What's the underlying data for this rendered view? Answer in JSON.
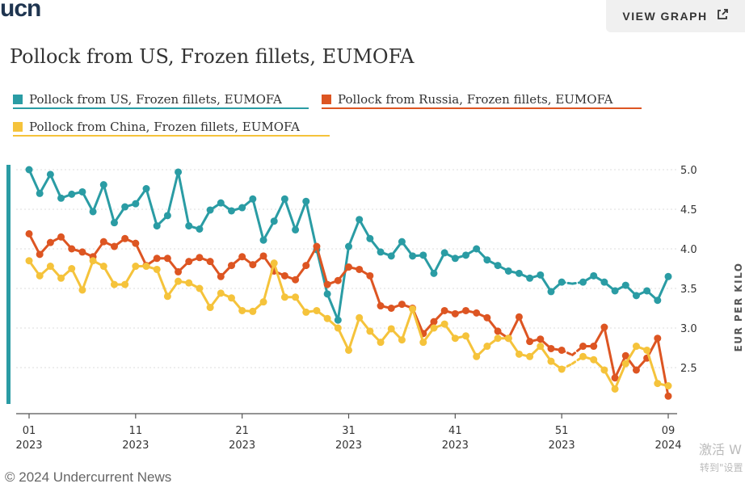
{
  "header": {
    "logo": "ucn",
    "view_graph_label": "VIEW GRAPH"
  },
  "footer": {
    "copyright": "© 2024 Undercurrent News"
  },
  "watermark": {
    "line1": "激活 W",
    "line2": "转到\"设置"
  },
  "colors": {
    "us": "#2a9ca4",
    "russia": "#dd5522",
    "china": "#f5c33b",
    "axis": "#555555",
    "grid": "#dddddd"
  },
  "icons": {
    "view_graph": "external-link-icon"
  },
  "chart_data": {
    "type": "line",
    "title": "Pollock from US, Frozen fillets, EUMOFA",
    "ylabel": "EUR PER KILO",
    "xlabel": "",
    "ylim": [
      2.0,
      5.15
    ],
    "y_ticks": [
      "5.0",
      "4.5",
      "4.0",
      "3.5",
      "3.0",
      "2.5"
    ],
    "x_ticks": [
      {
        "week": "01",
        "year": "2023"
      },
      {
        "week": "11",
        "year": "2023"
      },
      {
        "week": "21",
        "year": "2023"
      },
      {
        "week": "31",
        "year": "2023"
      },
      {
        "week": "41",
        "year": "2023"
      },
      {
        "week": "51",
        "year": "2023"
      },
      {
        "week": "09",
        "year": "2024"
      }
    ],
    "x_tick_positions": [
      0,
      10,
      20,
      30,
      40,
      50,
      60
    ],
    "gap_segments": [
      [
        50,
        52
      ]
    ],
    "legend_position": "top",
    "series": [
      {
        "name": "Pollock from US, Frozen fillets, EUMOFA",
        "color": "#2a9ca4",
        "values": [
          5.0,
          4.7,
          4.94,
          4.64,
          4.69,
          4.72,
          4.47,
          4.81,
          4.33,
          4.53,
          4.57,
          4.76,
          4.29,
          4.42,
          4.97,
          4.29,
          4.25,
          4.49,
          4.58,
          4.48,
          4.52,
          4.63,
          4.11,
          4.35,
          4.63,
          4.24,
          4.6,
          3.99,
          3.43,
          3.1,
          4.03,
          4.37,
          4.13,
          3.96,
          3.91,
          4.09,
          3.91,
          3.92,
          3.69,
          3.95,
          3.88,
          3.92,
          4.0,
          3.86,
          3.79,
          3.72,
          3.69,
          3.63,
          3.67,
          3.46,
          3.58,
          3.56,
          3.58,
          3.66,
          3.58,
          3.47,
          3.54,
          3.41,
          3.47,
          3.35,
          3.65
        ]
      },
      {
        "name": "Pollock from Russia, Frozen fillets, EUMOFA",
        "color": "#dd5522",
        "values": [
          4.19,
          3.93,
          4.08,
          4.15,
          4.0,
          3.96,
          3.9,
          4.09,
          4.03,
          4.13,
          4.07,
          3.79,
          3.88,
          3.88,
          3.71,
          3.84,
          3.89,
          3.84,
          3.65,
          3.79,
          3.9,
          3.8,
          3.91,
          3.72,
          3.66,
          3.61,
          3.79,
          4.03,
          3.55,
          3.6,
          3.77,
          3.74,
          3.66,
          3.28,
          3.25,
          3.3,
          3.25,
          2.93,
          3.08,
          3.22,
          3.18,
          3.22,
          3.19,
          3.13,
          2.96,
          2.87,
          3.14,
          2.83,
          2.86,
          2.74,
          2.72,
          2.66,
          2.77,
          2.77,
          3.01,
          2.37,
          2.65,
          2.47,
          2.62,
          2.87,
          2.14
        ]
      },
      {
        "name": "Pollock from China, Frozen fillets, EUMOFA",
        "color": "#f5c33b",
        "values": [
          3.85,
          3.66,
          3.78,
          3.63,
          3.75,
          3.48,
          3.85,
          3.78,
          3.55,
          3.55,
          3.78,
          3.78,
          3.74,
          3.4,
          3.59,
          3.57,
          3.5,
          3.26,
          3.44,
          3.38,
          3.22,
          3.21,
          3.33,
          3.82,
          3.39,
          3.39,
          3.2,
          3.22,
          3.12,
          3.0,
          2.72,
          3.13,
          2.96,
          2.82,
          2.99,
          2.85,
          3.24,
          2.82,
          3.0,
          3.05,
          2.87,
          2.9,
          2.64,
          2.77,
          2.87,
          2.87,
          2.67,
          2.64,
          2.77,
          2.58,
          2.48,
          2.55,
          2.64,
          2.6,
          2.47,
          2.23,
          2.55,
          2.77,
          2.72,
          2.3,
          2.27
        ]
      }
    ]
  }
}
